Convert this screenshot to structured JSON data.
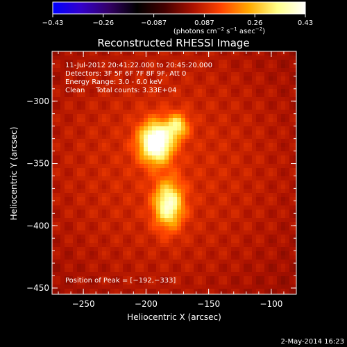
{
  "chart_data": {
    "type": "heatmap",
    "title": "Reconstructed RHESSI Image",
    "xlabel": "Heliocentric X (arcsec)",
    "ylabel": "Heliocentric Y (arcsec)",
    "xlim": [
      -275,
      -80
    ],
    "ylim": [
      -455,
      -260
    ],
    "x_ticks": [
      "−250",
      "−200",
      "−150",
      "−100"
    ],
    "y_ticks": [
      "−300",
      "−350",
      "−400",
      "−450"
    ],
    "colorbar": {
      "range": [
        -0.43,
        0.43
      ],
      "ticks": [
        "−0.43",
        "−0.26",
        "−0.087",
        "0.087",
        "0.26",
        "0.43"
      ],
      "label_base": "(photons cm",
      "label_exp1": "−2",
      "label_mid1": " s",
      "label_exp2": "−1",
      "label_mid2": " asec",
      "label_exp3": "−2",
      "label_end": ")"
    },
    "sources": [
      {
        "x": -192,
        "y": -333,
        "peak": 0.43
      },
      {
        "x": -182,
        "y": -383,
        "peak": 0.31
      },
      {
        "x": -175,
        "y": -320,
        "peak": 0.22
      }
    ],
    "annotations": {
      "time_range": "11-Jul-2012 20:41:22.000 to 20:45:20.000",
      "detectors": "Detectors: 3F 5F 6F 7F 8F 9F, Att 0",
      "energy": "Energy Range: 3.0 - 6.0 keV",
      "method": "Clean     Total counts: 3.33E+04",
      "peak": "Position of Peak = [−192,−333]"
    }
  },
  "footer": {
    "date": "2-May-2014 16:23"
  },
  "colors": {
    "background": "#000000",
    "axes": "#ffffff",
    "colormap": [
      "#0000ff",
      "#3300cc",
      "#330066",
      "#000000",
      "#440000",
      "#aa1100",
      "#ff4400",
      "#ffaa00",
      "#ffff88",
      "#ffffff"
    ]
  }
}
